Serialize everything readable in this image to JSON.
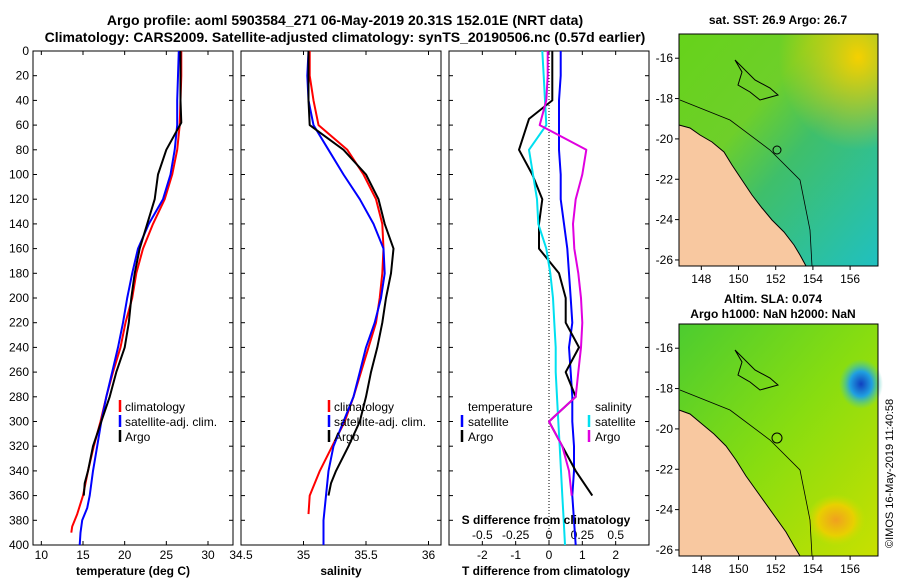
{
  "header": {
    "title_line1": "Argo profile: aoml 5903584_271 06-May-2019 20.31S 152.01E (NRT data)",
    "title_line2": "Climatology: CARS2009. Satellite-adjusted climatology: synTS_20190506.nc (0.57d earlier)"
  },
  "colors": {
    "climatology": "#ff0000",
    "satellite": "#0000ff",
    "argo": "#000000",
    "sat_salinity": "#00e0f0",
    "argo_salinity": "#e000e0",
    "land": "#f8c8a0",
    "sea_green": "#30c030"
  },
  "depth_axis": {
    "ylim": [
      0,
      400
    ],
    "ticks": [
      "0",
      "20",
      "40",
      "60",
      "80",
      "100",
      "120",
      "140",
      "160",
      "180",
      "200",
      "220",
      "240",
      "260",
      "280",
      "300",
      "320",
      "340",
      "360",
      "380",
      "400"
    ]
  },
  "chart_data": [
    {
      "name": "temperature",
      "type": "line",
      "xlabel": "temperature (deg C)",
      "xlim": [
        9,
        33
      ],
      "xticks": [
        "10",
        "15",
        "20",
        "25",
        "30"
      ],
      "legend": [
        "climatology",
        "satellite-adj. clim.",
        "Argo"
      ],
      "series": [
        {
          "name": "climatology",
          "x": [
            26.8,
            26.8,
            26.7,
            26.6,
            26.3,
            25.7,
            24.8,
            23.4,
            22.2,
            21.4,
            20.9,
            20.1,
            19.5,
            18.6,
            17.8,
            17.1,
            16.3,
            15.6,
            15.0,
            14.3,
            13.7,
            13.6
          ],
          "y": [
            0,
            20,
            40,
            60,
            80,
            100,
            120,
            140,
            160,
            180,
            200,
            220,
            240,
            260,
            280,
            300,
            320,
            340,
            360,
            375,
            385,
            390
          ]
        },
        {
          "name": "satellite-adj. clim.",
          "x": [
            26.5,
            26.4,
            26.3,
            26.3,
            26.0,
            25.5,
            24.6,
            22.9,
            21.6,
            20.9,
            20.3,
            19.8,
            19.2,
            18.5,
            17.8,
            17.2,
            16.7,
            16.2,
            15.8,
            15.5,
            14.9,
            14.7,
            14.6
          ],
          "y": [
            0,
            20,
            40,
            60,
            80,
            100,
            120,
            140,
            160,
            180,
            200,
            220,
            240,
            260,
            280,
            300,
            320,
            340,
            360,
            370,
            380,
            390,
            400
          ]
        },
        {
          "name": "Argo",
          "x": [
            26.7,
            26.7,
            26.7,
            26.8,
            25.0,
            24.0,
            23.6,
            22.7,
            21.8,
            21.2,
            20.8,
            20.5,
            20.0,
            19.0,
            18.2,
            17.2,
            16.2,
            15.6,
            15.2,
            15.1
          ],
          "y": [
            0,
            20,
            40,
            58,
            80,
            100,
            120,
            140,
            160,
            180,
            200,
            220,
            240,
            260,
            280,
            300,
            320,
            340,
            350,
            360
          ]
        }
      ]
    },
    {
      "name": "salinity",
      "type": "line",
      "xlabel": "salinity",
      "xlim": [
        34.5,
        36.1
      ],
      "xticks": [
        "34.5",
        "35",
        "35.5",
        "36"
      ],
      "legend": [
        "climatology",
        "satellite-adj. clim.",
        "Argo"
      ],
      "series": [
        {
          "name": "climatology",
          "x": [
            35.05,
            35.05,
            35.08,
            35.12,
            35.35,
            35.48,
            35.58,
            35.63,
            35.64,
            35.63,
            35.61,
            35.58,
            35.52,
            35.46,
            35.4,
            35.33,
            35.23,
            35.13,
            35.05,
            35.04
          ],
          "y": [
            0,
            20,
            40,
            60,
            80,
            100,
            120,
            140,
            160,
            180,
            200,
            220,
            240,
            260,
            280,
            300,
            320,
            340,
            360,
            375
          ]
        },
        {
          "name": "satellite-adj. clim.",
          "x": [
            35.04,
            35.03,
            35.04,
            35.08,
            35.2,
            35.32,
            35.45,
            35.56,
            35.64,
            35.65,
            35.62,
            35.57,
            35.5,
            35.45,
            35.4,
            35.32,
            35.24,
            35.2,
            35.18,
            35.16,
            35.16
          ],
          "y": [
            0,
            20,
            40,
            60,
            80,
            100,
            120,
            140,
            160,
            180,
            200,
            220,
            240,
            260,
            280,
            300,
            320,
            340,
            360,
            380,
            400
          ]
        },
        {
          "name": "Argo",
          "x": [
            35.04,
            35.04,
            35.04,
            35.05,
            35.32,
            35.5,
            35.6,
            35.65,
            35.72,
            35.7,
            35.66,
            35.63,
            35.59,
            35.54,
            35.5,
            35.45,
            35.36,
            35.26,
            35.22,
            35.2
          ],
          "y": [
            0,
            20,
            40,
            60,
            80,
            100,
            120,
            140,
            160,
            180,
            200,
            220,
            240,
            260,
            280,
            300,
            320,
            340,
            350,
            360
          ]
        }
      ]
    },
    {
      "name": "differences",
      "type": "line",
      "xlabel": "T difference from climatology",
      "xlabel_top": "S difference from climatology",
      "xlim": [
        -3,
        3
      ],
      "xticks": [
        "-2",
        "-1",
        "0",
        "1",
        "2"
      ],
      "xticks_top": [
        "-0.5",
        "-0.25",
        "0",
        "0.25",
        "0.5"
      ],
      "legend_left_title": "temperature",
      "legend_right_title": "salinity",
      "legend_left": [
        "satellite",
        "Argo"
      ],
      "legend_right": [
        "satellite",
        "Argo"
      ],
      "series": [
        {
          "name": "T satellite",
          "x": [
            0.35,
            0.35,
            0.3,
            0.3,
            0.3,
            0.35,
            0.35,
            0.45,
            0.55,
            0.6,
            0.65,
            0.7,
            0.6,
            0.65,
            0.7,
            0.7,
            0.75,
            0.75,
            0.7,
            0.75,
            0.8
          ],
          "y": [
            0,
            20,
            40,
            60,
            80,
            100,
            120,
            140,
            160,
            180,
            200,
            220,
            240,
            260,
            280,
            300,
            320,
            340,
            360,
            380,
            400
          ]
        },
        {
          "name": "T Argo",
          "x": [
            0.1,
            0.1,
            0.1,
            -0.6,
            -0.9,
            -0.5,
            -0.2,
            -0.3,
            -0.3,
            0.3,
            0.5,
            0.5,
            0.9,
            0.5,
            0.8,
            0.0,
            0.4,
            0.8,
            1.3
          ],
          "y": [
            0,
            20,
            40,
            55,
            80,
            100,
            120,
            140,
            160,
            180,
            200,
            220,
            240,
            260,
            280,
            300,
            320,
            340,
            360
          ]
        },
        {
          "name": "S satellite",
          "x": [
            -0.05,
            -0.04,
            -0.03,
            -0.02,
            -0.15,
            -0.12,
            -0.09,
            -0.08,
            -0.02,
            0.01,
            0.03,
            0.04,
            0.05,
            0.05,
            0.06,
            0.07,
            0.08,
            0.09,
            0.1,
            0.11,
            0.12
          ],
          "y": [
            0,
            20,
            40,
            60,
            80,
            100,
            120,
            140,
            160,
            180,
            200,
            220,
            240,
            260,
            280,
            300,
            320,
            340,
            360,
            380,
            400
          ]
        },
        {
          "name": "S Argo",
          "x": [
            -0.01,
            -0.01,
            -0.02,
            -0.07,
            0.28,
            0.25,
            0.2,
            0.18,
            0.19,
            0.22,
            0.24,
            0.25,
            0.24,
            0.22,
            0.2,
            0.0,
            0.1,
            0.15,
            0.17
          ],
          "y": [
            0,
            20,
            40,
            60,
            80,
            100,
            120,
            140,
            160,
            180,
            200,
            220,
            240,
            260,
            280,
            300,
            320,
            340,
            360
          ]
        }
      ]
    }
  ],
  "maps": {
    "sst": {
      "title": "sat. SST: 26.9 Argo: 26.7",
      "xticks": [
        "148",
        "150",
        "152",
        "154",
        "156"
      ],
      "yticks": [
        "-16",
        "-18",
        "-20",
        "-22",
        "-24",
        "-26"
      ]
    },
    "sla": {
      "title_line1": "Altim. SLA: 0.074",
      "title_line2": "Argo h1000: NaN h2000: NaN",
      "xticks": [
        "148",
        "150",
        "152",
        "154",
        "156"
      ],
      "yticks": [
        "-16",
        "-18",
        "-20",
        "-22",
        "-24",
        "-26"
      ]
    }
  },
  "credit": "©IMOS 16-May-2019 11:40:58"
}
